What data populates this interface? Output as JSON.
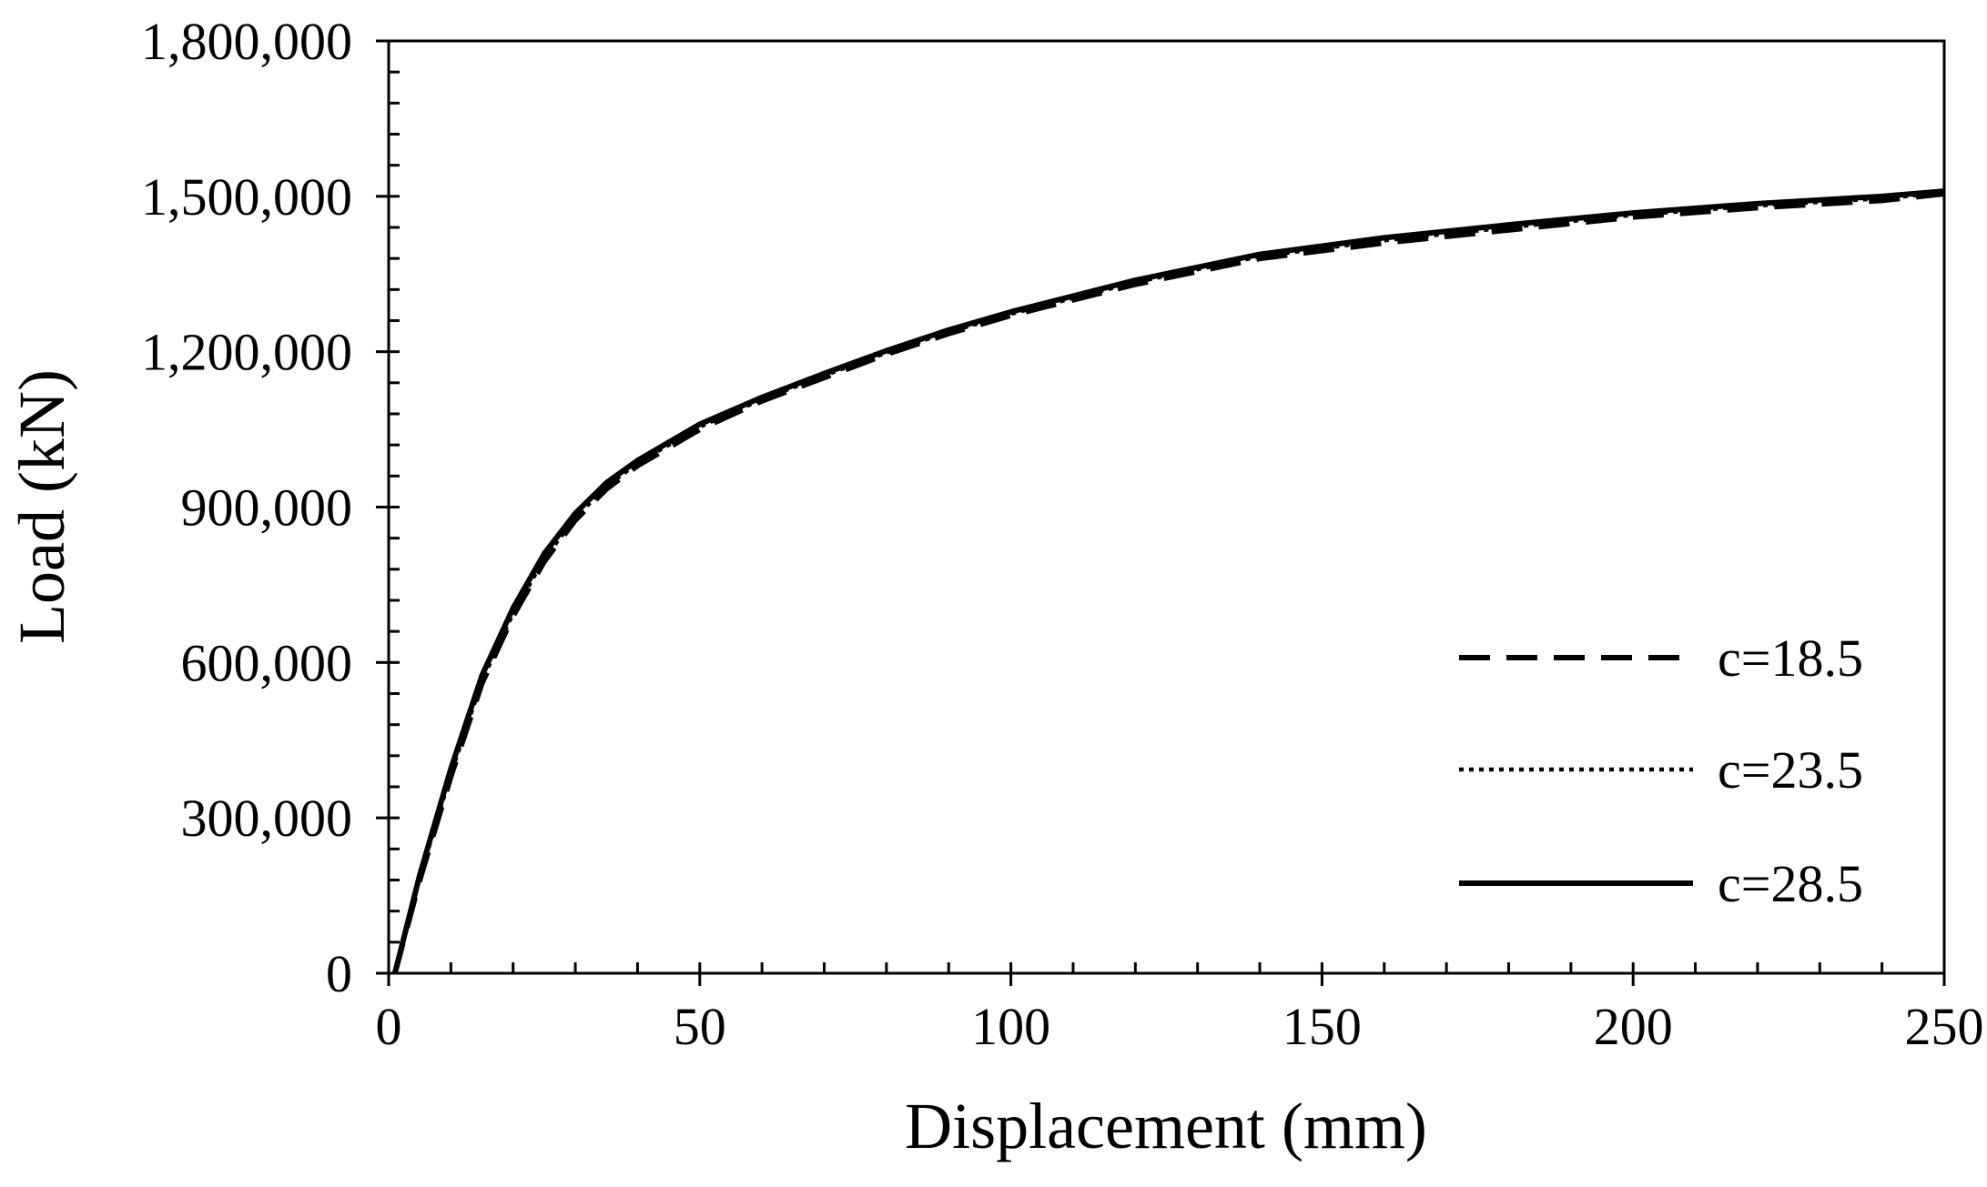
{
  "chart_data": {
    "type": "line",
    "title": "",
    "xlabel": "Displacement (mm)",
    "ylabel": "Load (kN)",
    "xlim": [
      0,
      250
    ],
    "ylim": [
      0,
      1800000
    ],
    "xticks": [
      0,
      50,
      100,
      150,
      200,
      250
    ],
    "xtick_labels": [
      "0",
      "50",
      "100",
      "150",
      "200",
      "250"
    ],
    "yticks": [
      0,
      300000,
      600000,
      900000,
      1200000,
      1500000,
      1800000
    ],
    "ytick_labels": [
      "0",
      "300,000",
      "600,000",
      "900,000",
      "1,200,000",
      "1,500,000",
      "1,800,000"
    ],
    "x_minor_step": 10,
    "y_minor_step": 60000,
    "grid": false,
    "legend_position": "bottom-right",
    "series": [
      {
        "name": "c=18.5",
        "style": "dashed",
        "color": "#000000",
        "x": [
          1,
          5,
          10,
          15,
          20,
          25,
          30,
          35,
          40,
          50,
          60,
          70,
          80,
          90,
          100,
          120,
          140,
          160,
          180,
          200,
          220,
          240,
          250
        ],
        "y": [
          0,
          180000,
          380000,
          560000,
          690000,
          795000,
          875000,
          935000,
          980000,
          1050000,
          1105000,
          1150000,
          1195000,
          1235000,
          1270000,
          1330000,
          1380000,
          1410000,
          1435000,
          1460000,
          1478000,
          1492000,
          1505000
        ]
      },
      {
        "name": "c=23.5",
        "style": "dotted",
        "color": "#000000",
        "x": [
          1,
          5,
          10,
          15,
          20,
          25,
          30,
          35,
          40,
          50,
          60,
          70,
          80,
          90,
          100,
          120,
          140,
          160,
          180,
          200,
          220,
          240,
          250
        ],
        "y": [
          0,
          185000,
          385000,
          565000,
          695000,
          800000,
          880000,
          940000,
          985000,
          1055000,
          1108000,
          1154000,
          1198000,
          1238000,
          1273000,
          1334000,
          1384000,
          1415000,
          1440000,
          1464000,
          1482000,
          1496000,
          1507000
        ]
      },
      {
        "name": "c=28.5",
        "style": "solid",
        "color": "#000000",
        "x": [
          1,
          5,
          10,
          15,
          20,
          25,
          30,
          35,
          40,
          50,
          60,
          70,
          80,
          90,
          100,
          120,
          140,
          160,
          180,
          200,
          220,
          240,
          250
        ],
        "y": [
          0,
          190000,
          395000,
          575000,
          705000,
          810000,
          888000,
          947000,
          990000,
          1060000,
          1112000,
          1158000,
          1202000,
          1242000,
          1277000,
          1338000,
          1388000,
          1420000,
          1445000,
          1468000,
          1486000,
          1500000,
          1510000
        ]
      }
    ]
  }
}
